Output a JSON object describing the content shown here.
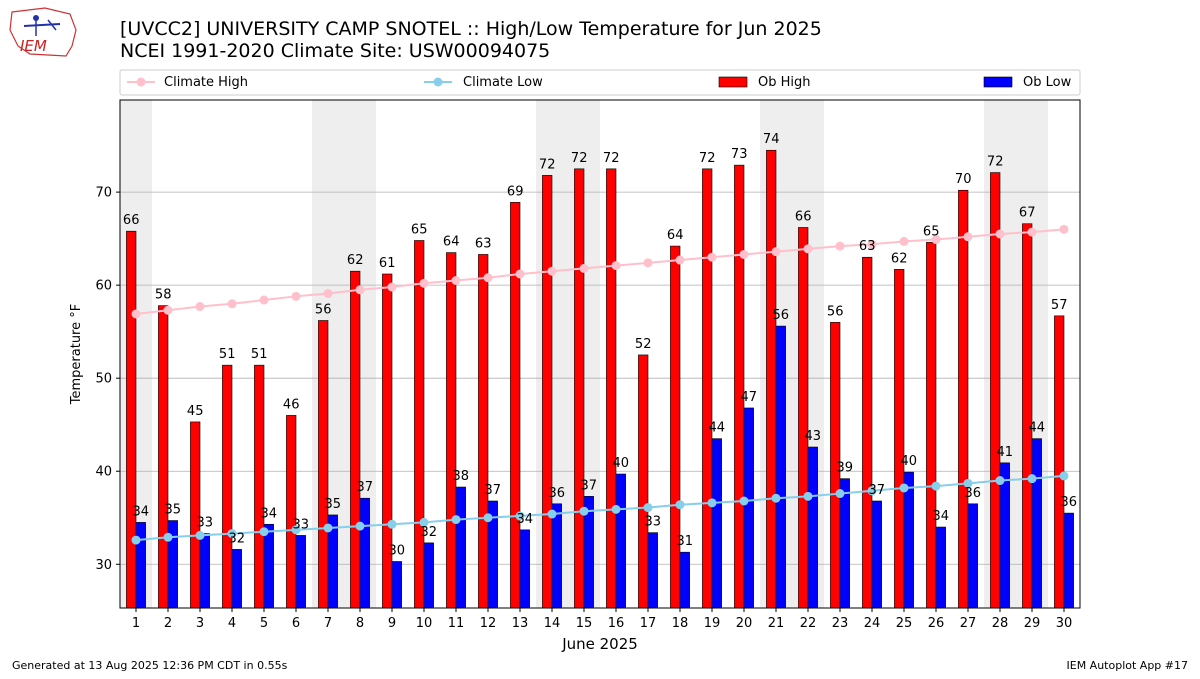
{
  "header": {
    "logo_text": "IEM",
    "title_line1": "[UVCC2] UNIVERSITY CAMP SNOTEL :: High/Low Temperature for Jun 2025",
    "title_line2": "NCEI 1991-2020 Climate Site: USW00094075"
  },
  "footer": {
    "left": "Generated at 13 Aug 2025 12:36 PM CDT in 0.55s",
    "right": "IEM Autoplot App #17"
  },
  "colors": {
    "ob_high": "#ff0000",
    "ob_low": "#0000ff",
    "climate_high": "#ffc0cb",
    "climate_low": "#87ceeb",
    "weekend_band": "#eeeeee",
    "grid": "#b0b0b0"
  },
  "chart_data": {
    "type": "bar",
    "xlabel": "June 2025",
    "ylabel": "Temperature °F",
    "ylim": [
      25.3,
      79.9
    ],
    "yticks": [
      30,
      40,
      50,
      60,
      70
    ],
    "grid": "horizontal",
    "legend_position": "top",
    "categories": [
      "1",
      "2",
      "3",
      "4",
      "5",
      "6",
      "7",
      "8",
      "9",
      "10",
      "11",
      "12",
      "13",
      "14",
      "15",
      "16",
      "17",
      "18",
      "19",
      "20",
      "21",
      "22",
      "23",
      "24",
      "25",
      "26",
      "27",
      "28",
      "29",
      "30"
    ],
    "shaded_days": [
      "1",
      "7",
      "8",
      "14",
      "15",
      "21",
      "22",
      "28",
      "29"
    ],
    "series": [
      {
        "name": "Ob High",
        "kind": "bar",
        "color": "#ff0000",
        "labels": [
          66,
          58,
          45,
          51,
          51,
          46,
          56,
          62,
          61,
          65,
          64,
          63,
          69,
          72,
          72,
          72,
          52,
          64,
          72,
          73,
          74,
          66,
          56,
          63,
          62,
          65,
          70,
          72,
          67,
          57
        ],
        "values": [
          65.8,
          57.8,
          45.3,
          51.4,
          51.4,
          46.0,
          56.2,
          61.5,
          61.2,
          64.8,
          63.5,
          63.3,
          68.9,
          71.8,
          72.5,
          72.5,
          52.5,
          64.2,
          72.5,
          72.9,
          74.5,
          66.2,
          56.0,
          63.0,
          61.7,
          64.6,
          70.2,
          72.1,
          66.6,
          56.7
        ]
      },
      {
        "name": "Ob Low",
        "kind": "bar",
        "color": "#0000ff",
        "labels": [
          34,
          35,
          33,
          32,
          34,
          33,
          35,
          37,
          30,
          32,
          38,
          37,
          34,
          36,
          37,
          40,
          33,
          31,
          44,
          47,
          56,
          43,
          39,
          37,
          40,
          34,
          36,
          41,
          44,
          36
        ],
        "values": [
          34.5,
          34.7,
          33.3,
          31.6,
          34.3,
          33.1,
          35.3,
          37.1,
          30.3,
          32.3,
          38.3,
          36.8,
          33.7,
          36.5,
          37.3,
          39.7,
          33.4,
          31.3,
          43.5,
          46.8,
          55.6,
          42.6,
          39.2,
          36.8,
          39.9,
          34.0,
          36.5,
          40.9,
          43.5,
          35.5
        ]
      },
      {
        "name": "Climate High",
        "kind": "line",
        "color": "#ffc0cb",
        "values": [
          56.9,
          57.3,
          57.7,
          58.0,
          58.4,
          58.8,
          59.1,
          59.5,
          59.8,
          60.2,
          60.5,
          60.8,
          61.2,
          61.5,
          61.8,
          62.1,
          62.4,
          62.7,
          63.0,
          63.3,
          63.6,
          63.9,
          64.2,
          64.4,
          64.7,
          64.9,
          65.2,
          65.5,
          65.7,
          66.0
        ]
      },
      {
        "name": "Climate Low",
        "kind": "line",
        "color": "#87ceeb",
        "values": [
          32.6,
          32.9,
          33.1,
          33.3,
          33.5,
          33.7,
          33.9,
          34.1,
          34.3,
          34.5,
          34.8,
          35.0,
          35.2,
          35.4,
          35.7,
          35.9,
          36.1,
          36.4,
          36.6,
          36.8,
          37.1,
          37.3,
          37.6,
          37.9,
          38.2,
          38.4,
          38.7,
          39.0,
          39.2,
          39.5
        ]
      }
    ]
  }
}
